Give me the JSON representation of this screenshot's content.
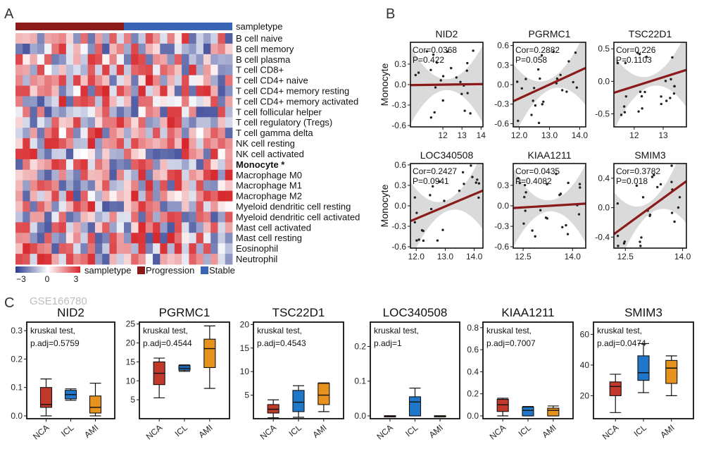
{
  "panel_labels": {
    "a": "A",
    "b": "B",
    "c": "C"
  },
  "panel_a": {
    "sampletype_label": "sampletype",
    "rows": [
      {
        "label": "B cell naive",
        "bold": false
      },
      {
        "label": "B cell memory",
        "bold": false
      },
      {
        "label": "B cell plasma",
        "bold": false
      },
      {
        "label": "T cell CD8+",
        "bold": false
      },
      {
        "label": "T cell CD4+ naive",
        "bold": false
      },
      {
        "label": "T cell CD4+ memory resting",
        "bold": false
      },
      {
        "label": "T cell CD4+ memory activated",
        "bold": false
      },
      {
        "label": "T cell follicular helper",
        "bold": false
      },
      {
        "label": "T cell regulatory (Tregs)",
        "bold": false
      },
      {
        "label": "T cell gamma delta",
        "bold": false
      },
      {
        "label": "NK cell resting",
        "bold": false
      },
      {
        "label": "NK cell activated",
        "bold": false
      },
      {
        "label": "Monocyte *",
        "bold": true
      },
      {
        "label": "Macrophage M0",
        "bold": false
      },
      {
        "label": "Macrophage M1",
        "bold": false
      },
      {
        "label": "Macrophage M2",
        "bold": false
      },
      {
        "label": "Myeloid dendritic cell resting",
        "bold": false
      },
      {
        "label": "Myeloid dendritic cell activated",
        "bold": false
      },
      {
        "label": "Mast cell activated",
        "bold": false
      },
      {
        "label": "Mast cell resting",
        "bold": false
      },
      {
        "label": "Eosinophil",
        "bold": false
      },
      {
        "label": "Neutrophil",
        "bold": false
      }
    ],
    "n_progression": 15,
    "n_stable": 15,
    "scale_ticks": [
      "−3",
      "0",
      "3"
    ],
    "legend_title": "sampletype",
    "legend_items": [
      {
        "label": "Progression",
        "color": "#8b1a1a"
      },
      {
        "label": "Stable",
        "color": "#3a64b4"
      }
    ],
    "colors": {
      "low": "#2b3a8f",
      "mid": "#ffffff",
      "high": "#d7262b"
    }
  },
  "panel_b": {
    "ylabel": "Monocyte",
    "plots": [
      {
        "title": "NID2",
        "cor": "Cor=0.0368",
        "p": "P=0.422",
        "slope": 0.01,
        "xlim": [
          10.3,
          14.1
        ],
        "ylim": [
          -0.62,
          0.62
        ],
        "xticks": [
          "12",
          "13",
          "14"
        ],
        "xtickvals": [
          12,
          13,
          14
        ],
        "yticks": [
          "0.3",
          "0.0",
          "-0.3",
          "-0.6"
        ],
        "ytickvals": [
          0.3,
          0,
          -0.3,
          -0.6
        ],
        "show_ylabel": true
      },
      {
        "title": "PGRMC1",
        "cor": "Cor=0.2882",
        "p": "P=0.058",
        "slope": 0.32,
        "xlim": [
          11.8,
          14.2
        ],
        "ylim": [
          -0.65,
          0.65
        ],
        "xticks": [
          "12.0",
          "13.0",
          "14.0"
        ],
        "xtickvals": [
          12,
          13,
          14
        ],
        "yticks": [
          "0.6",
          "0.3",
          "0.0",
          "-0.3",
          "-0.6"
        ],
        "ytickvals": [
          0.6,
          0.3,
          0,
          -0.3,
          -0.6
        ],
        "show_ylabel": false
      },
      {
        "title": "TSC22D1",
        "cor": "Cor=0.226",
        "p": "P=0.1103",
        "slope": 0.22,
        "xlim": [
          11.3,
          13.8
        ],
        "ylim": [
          -0.7,
          0.6
        ],
        "xticks": [
          "12",
          "13"
        ],
        "xtickvals": [
          12,
          13
        ],
        "yticks": [
          "0.5",
          "0.0",
          "-0.5"
        ],
        "ytickvals": [
          0.5,
          0,
          -0.5
        ],
        "show_ylabel": false
      },
      {
        "title": "LOC340508",
        "cor": "Cor=0.2427",
        "p": "P=0.0941",
        "slope": 0.28,
        "xlim": [
          11.8,
          14.3
        ],
        "ylim": [
          -0.62,
          0.62
        ],
        "xticks": [
          "12.0",
          "13.0",
          "14.0"
        ],
        "xtickvals": [
          12,
          13,
          14
        ],
        "yticks": [
          "0.6",
          "0.3",
          "0.0",
          "-0.3",
          "-0.6"
        ],
        "ytickvals": [
          0.6,
          0.3,
          0,
          -0.3,
          -0.6
        ],
        "show_ylabel": true
      },
      {
        "title": "KIAA1211",
        "cor": "Cor=0.0435",
        "p": "P=0.4082",
        "slope": 0.04,
        "xlim": [
          12.2,
          14.4
        ],
        "ylim": [
          -0.62,
          0.62
        ],
        "xticks": [
          "12.5",
          "14.0"
        ],
        "xtickvals": [
          12.5,
          14
        ],
        "yticks": [
          "0.3",
          "0.0",
          "-0.3",
          "-0.6"
        ],
        "ytickvals": [
          0.3,
          0,
          -0.3,
          -0.6
        ],
        "show_ylabel": false
      },
      {
        "title": "SMIM3",
        "cor": "Cor=0.3782",
        "p": "P=0.018",
        "slope": 0.45,
        "xlim": [
          12.2,
          14.1
        ],
        "ylim": [
          -0.55,
          0.6
        ],
        "xticks": [
          "12.5",
          "14.0"
        ],
        "xtickvals": [
          12.5,
          14
        ],
        "yticks": [
          "0.4",
          "0.0",
          "-0.4"
        ],
        "ytickvals": [
          0.4,
          0,
          -0.4
        ],
        "show_ylabel": false
      }
    ]
  },
  "panel_c": {
    "dataset": "GSE166780",
    "groups": [
      "NCA",
      "ICL",
      "AMI"
    ],
    "group_colors": [
      "#c0392b",
      "#1f77c9",
      "#e8921e"
    ],
    "stat_line1": "kruskal test,",
    "plots": [
      {
        "title": "NID2",
        "padj": "p.adj=0.5759",
        "ymax": 0.33,
        "yticks": [
          "0.3",
          "0.2",
          "0.1",
          "0.0"
        ],
        "ytickvals": [
          0.3,
          0.2,
          0.1,
          0.0
        ],
        "boxes": [
          {
            "q1": 0.03,
            "med": 0.04,
            "q3": 0.1,
            "lo": 0.0,
            "hi": 0.13
          },
          {
            "q1": 0.06,
            "med": 0.075,
            "q3": 0.09,
            "lo": 0.055,
            "hi": 0.095
          },
          {
            "q1": 0.01,
            "med": 0.03,
            "q3": 0.07,
            "lo": 0.0,
            "hi": 0.115
          }
        ]
      },
      {
        "title": "PGRMC1",
        "padj": "p.adj=0.4544",
        "ymax": 25.5,
        "yticks": [
          "25",
          "20",
          "15",
          "10",
          "5"
        ],
        "ytickvals": [
          25,
          20,
          15,
          10,
          5
        ],
        "boxes": [
          {
            "q1": 9,
            "med": 12,
            "q3": 15,
            "lo": 5.5,
            "hi": 16
          },
          {
            "q1": 12.8,
            "med": 13.3,
            "q3": 14,
            "lo": 12.5,
            "hi": 14.2
          },
          {
            "q1": 13.5,
            "med": 18.5,
            "q3": 21,
            "lo": 8,
            "hi": 24.5
          }
        ]
      },
      {
        "title": "TSC22D1",
        "padj": "p.adj=0.4543",
        "ymax": 20.5,
        "yticks": [
          "20",
          "15",
          "10",
          "5"
        ],
        "ytickvals": [
          20,
          15,
          10,
          5
        ],
        "boxes": [
          {
            "q1": 1.2,
            "med": 2.0,
            "q3": 3.0,
            "lo": 0.2,
            "hi": 4.0
          },
          {
            "q1": 1.5,
            "med": 3.5,
            "q3": 6.0,
            "lo": 0.3,
            "hi": 7.0
          },
          {
            "q1": 3.0,
            "med": 5.0,
            "q3": 7.5,
            "lo": 1.5,
            "hi": 7.6
          }
        ]
      },
      {
        "title": "LOC340508",
        "padj": "p.adj=1",
        "ymax": 0.27,
        "yticks": [
          "0.2",
          "0.1",
          "0.0"
        ],
        "ytickvals": [
          0.2,
          0.1,
          0.0
        ],
        "boxes": [
          {
            "q1": 0.0,
            "med": 0.0,
            "q3": 0.0,
            "lo": 0.0,
            "hi": 0.0
          },
          {
            "q1": 0.0,
            "med": 0.04,
            "q3": 0.055,
            "lo": 0.0,
            "hi": 0.08
          },
          {
            "q1": 0.0,
            "med": 0.0,
            "q3": 0.0,
            "lo": 0.0,
            "hi": 0.0
          }
        ]
      },
      {
        "title": "KIAA1211",
        "padj": "p.adj=0.7007",
        "ymax": 0.85,
        "yticks": [
          "0.8",
          "0.6",
          "0.4",
          "0.2",
          "0.0"
        ],
        "ytickvals": [
          0.8,
          0.6,
          0.4,
          0.2,
          0.0
        ],
        "boxes": [
          {
            "q1": 0.04,
            "med": 0.1,
            "q3": 0.15,
            "lo": 0.0,
            "hi": 0.16
          },
          {
            "q1": 0.0,
            "med": 0.05,
            "q3": 0.08,
            "lo": 0.0,
            "hi": 0.085
          },
          {
            "q1": 0.0,
            "med": 0.05,
            "q3": 0.07,
            "lo": 0.0,
            "hi": 0.09
          }
        ]
      },
      {
        "title": "SMIM3",
        "padj": "p.adj=0.0474",
        "ymax": 68,
        "yticks": [
          "60",
          "40",
          "20"
        ],
        "ytickvals": [
          60,
          40,
          20
        ],
        "boxes": [
          {
            "q1": 20,
            "med": 26,
            "q3": 29,
            "lo": 9,
            "hi": 34
          },
          {
            "q1": 30,
            "med": 35,
            "q3": 46,
            "lo": 22,
            "hi": 54
          },
          {
            "q1": 28,
            "med": 38,
            "q3": 43,
            "lo": 20,
            "hi": 46
          }
        ]
      }
    ]
  }
}
